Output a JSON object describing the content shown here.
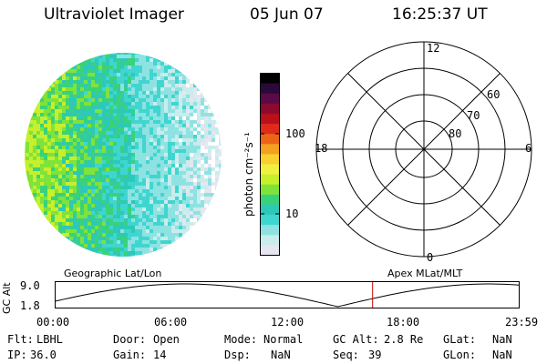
{
  "header": {
    "title": "Ultraviolet Imager",
    "date": "05 Jun 07",
    "time": "16:25:37 UT"
  },
  "colorbar": {
    "unit_label": "photon cm⁻²s⁻¹",
    "ticks": [
      "100",
      "10"
    ],
    "colors": [
      "#e6e6f0",
      "#c9ecec",
      "#8fe2e2",
      "#3fd6d0",
      "#2ec8b8",
      "#39d27a",
      "#7fe33a",
      "#c6ef2c",
      "#f0f040",
      "#f8d030",
      "#f4a020",
      "#ec6418",
      "#e02a1a",
      "#b8101c",
      "#8a0a30",
      "#5a0a48",
      "#2a0a3a",
      "#000000"
    ]
  },
  "polar_grid": {
    "mlt_labels": [
      "12",
      "6",
      "0",
      "18"
    ],
    "lat_labels": [
      "60",
      "70",
      "80"
    ]
  },
  "altitude_panel": {
    "left_label": "Geographic Lat/Lon",
    "right_label": "Apex MLat/MLT",
    "yaxis_label": "GC Alt",
    "ytick_high": "9.0",
    "ytick_low": "1.8",
    "xticks": [
      "00:00",
      "06:00",
      "12:00",
      "18:00",
      "23:59"
    ],
    "current_time_fraction": 0.685,
    "marker_color": "#cc0000"
  },
  "footer": {
    "flt_label": "Flt:",
    "flt_value": "LBHL",
    "door_label": "Door:",
    "door_value": "Open",
    "mode_label": "Mode:",
    "mode_value": "Normal",
    "gcalt_label": "GC Alt:",
    "gcalt_value": "2.8 Re",
    "glat_label": "GLat:",
    "glat_value": "NaN",
    "ip_label": "IP:",
    "ip_value": "36.0",
    "gain_label": "Gain:",
    "gain_value": "14",
    "dsp_label": "Dsp:",
    "dsp_value": "NaN",
    "seq_label": "Seq:",
    "seq_value": "39",
    "glon_label": "GLon:",
    "glon_value": "NaN"
  }
}
